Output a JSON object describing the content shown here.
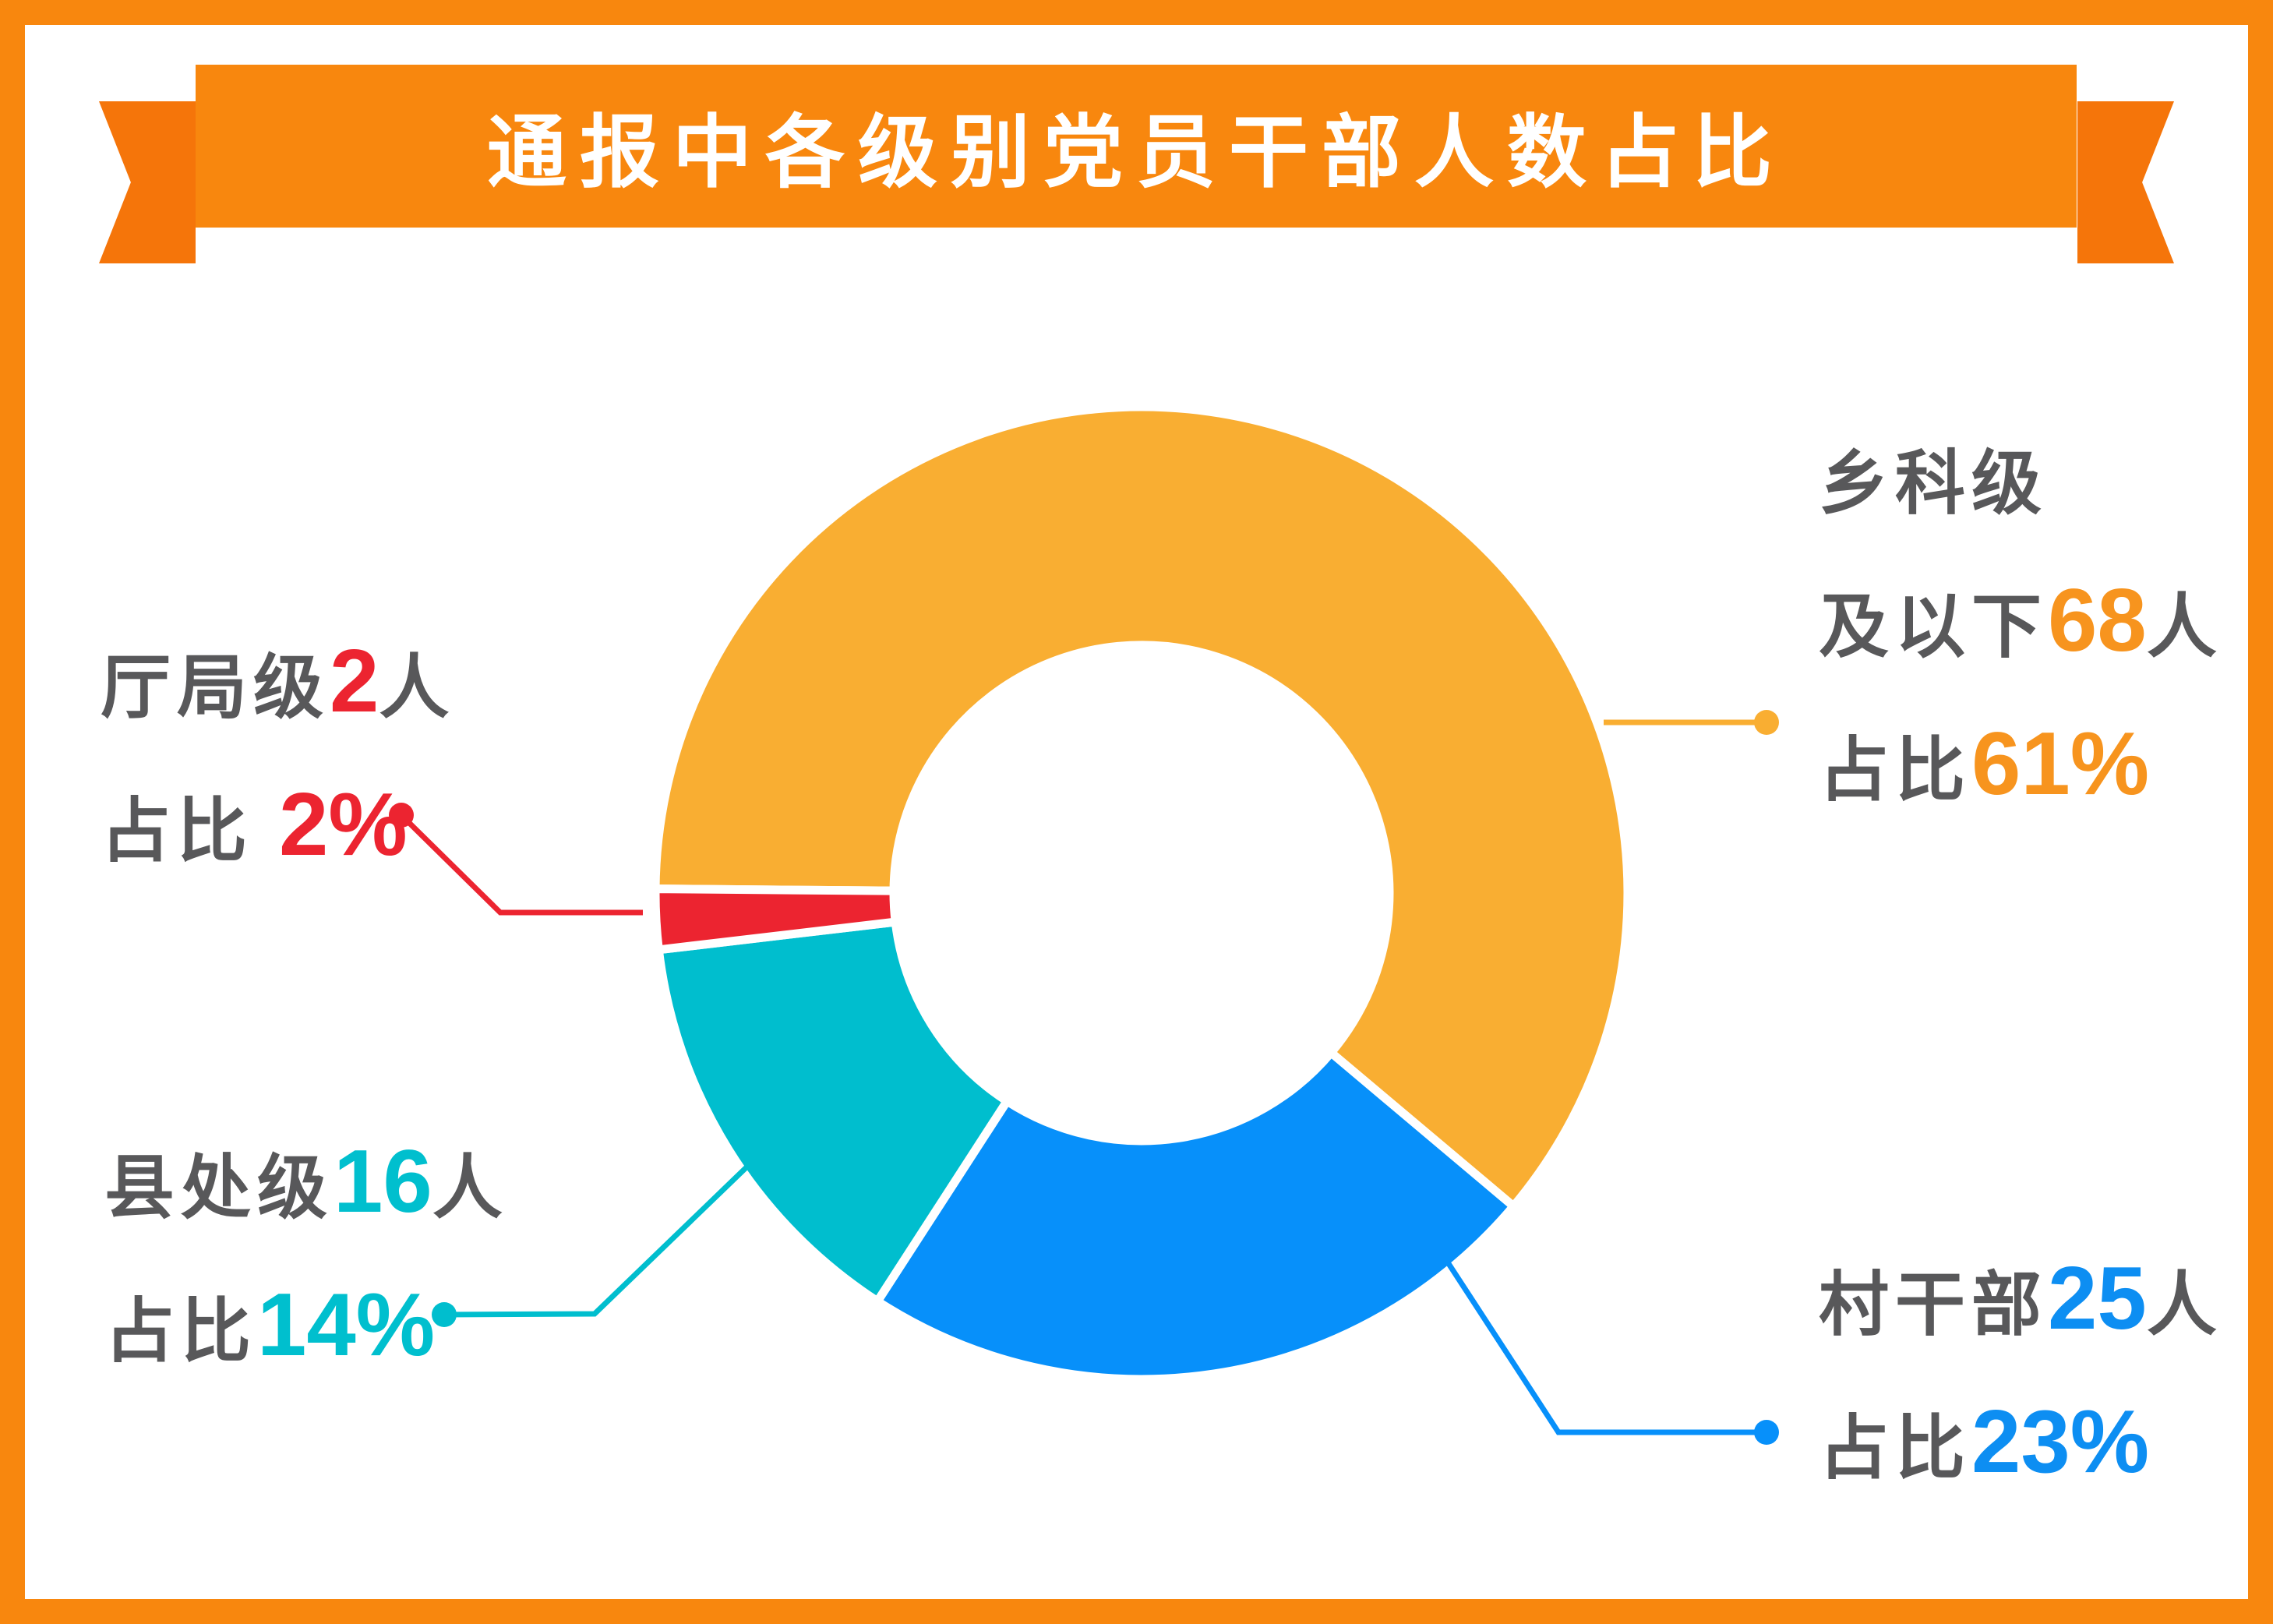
{
  "title": {
    "text": "通报中各级别党员干部人数占比"
  },
  "palette": {
    "frame_orange": "#F8870E",
    "banner_orange": "#F8870E",
    "banner_tail_orange": "#F5750A",
    "title_text": "#FFFFFF",
    "label_gray": "#58585A",
    "white_gap": "#FFFFFF"
  },
  "chart_data": {
    "type": "pie",
    "subtype": "donut",
    "title": "通报中各级别党员干部人数占比",
    "rotation_deg_clockwise_from_top": 270.5,
    "inner_radius_ratio": 0.51,
    "legend_position": "callouts-around-donut",
    "grid": false,
    "unit": "人",
    "segments": [
      {
        "id": "township",
        "label": "乡科级及以下",
        "people": 68,
        "percent": 61,
        "color": "#F9AE32"
      },
      {
        "id": "village",
        "label": "村干部",
        "people": 25,
        "percent": 23,
        "color": "#0790FA"
      },
      {
        "id": "county",
        "label": "县处级",
        "people": 16,
        "percent": 14,
        "color": "#00BECE"
      },
      {
        "id": "bureau",
        "label": "厅局级",
        "people": 2,
        "percent": 2,
        "color": "#EC2430"
      }
    ]
  },
  "callouts": {
    "township": {
      "accent": "#F7941E",
      "lines": [
        {
          "pre": "乡科级",
          "num": "",
          "post": ""
        },
        {
          "pre": "及以下",
          "num": "68",
          "post": "人"
        },
        {
          "pre": "占比",
          "num": "61%",
          "post": ""
        }
      ]
    },
    "bureau": {
      "accent": "#EC2430",
      "lines": [
        {
          "pre": "厅局级",
          "num": "2",
          "post": "人"
        },
        {
          "pre": "占比 ",
          "num": "2%",
          "post": ""
        }
      ]
    },
    "county": {
      "accent": "#00BFCE",
      "lines": [
        {
          "pre": "县处级",
          "num": "16",
          "post": "人"
        },
        {
          "pre": "占比",
          "num": "14%",
          "post": ""
        }
      ]
    },
    "village": {
      "accent": "#0D8EF2",
      "lines": [
        {
          "pre": "村干部",
          "num": "25",
          "post": "人"
        },
        {
          "pre": "占比",
          "num": "23%",
          "post": ""
        }
      ]
    }
  }
}
